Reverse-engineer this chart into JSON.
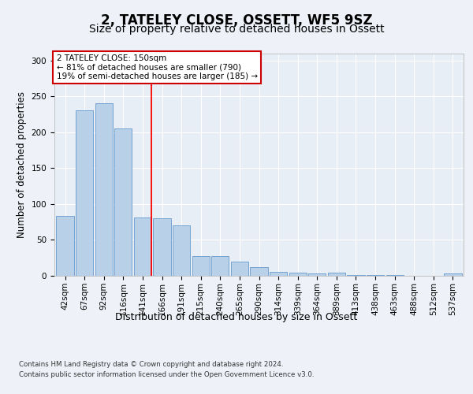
{
  "title": "2, TATELEY CLOSE, OSSETT, WF5 9SZ",
  "subtitle": "Size of property relative to detached houses in Ossett",
  "xlabel": "Distribution of detached houses by size in Ossett",
  "ylabel": "Number of detached properties",
  "categories": [
    "42sqm",
    "67sqm",
    "92sqm",
    "116sqm",
    "141sqm",
    "166sqm",
    "191sqm",
    "215sqm",
    "240sqm",
    "265sqm",
    "290sqm",
    "314sqm",
    "339sqm",
    "364sqm",
    "389sqm",
    "413sqm",
    "438sqm",
    "463sqm",
    "488sqm",
    "512sqm",
    "537sqm"
  ],
  "values": [
    83,
    230,
    240,
    205,
    81,
    80,
    70,
    27,
    27,
    20,
    12,
    5,
    4,
    3,
    4,
    1,
    1,
    1,
    0,
    0,
    3
  ],
  "bar_color": "#b8d0e8",
  "bar_edge_color": "#6699cc",
  "highlight_index": 4,
  "annotation_title": "2 TATELEY CLOSE: 150sqm",
  "annotation_line1": "← 81% of detached houses are smaller (790)",
  "annotation_line2": "19% of semi-detached houses are larger (185) →",
  "annotation_box_color": "#ffffff",
  "annotation_box_edge_color": "#cc0000",
  "footer_line1": "Contains HM Land Registry data © Crown copyright and database right 2024.",
  "footer_line2": "Contains public sector information licensed under the Open Government Licence v3.0.",
  "ylim": [
    0,
    310
  ],
  "yticks": [
    0,
    50,
    100,
    150,
    200,
    250,
    300
  ],
  "bg_color": "#eef2f8",
  "plot_bg_color": "#e8eef6",
  "grid_color": "#ffffff",
  "title_fontsize": 12,
  "subtitle_fontsize": 10,
  "tick_fontsize": 7.5,
  "label_fontsize": 9,
  "ylabel_fontsize": 8.5
}
